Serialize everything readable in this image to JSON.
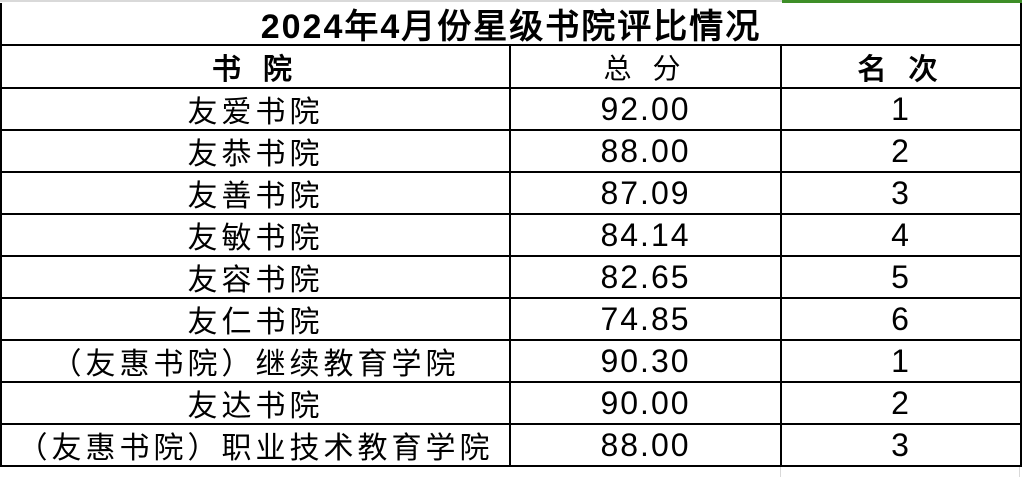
{
  "title": "2024年4月份星级书院评比情况",
  "headers": {
    "academy": "书 院",
    "score": "总 分",
    "rank": "名 次"
  },
  "rows": [
    {
      "academy": "友爱书院",
      "score": "92.00",
      "rank": "1"
    },
    {
      "academy": "友恭书院",
      "score": "88.00",
      "rank": "2"
    },
    {
      "academy": "友善书院",
      "score": "87.09",
      "rank": "3"
    },
    {
      "academy": "友敏书院",
      "score": "84.14",
      "rank": "4"
    },
    {
      "academy": "友容书院",
      "score": "82.65",
      "rank": "5"
    },
    {
      "academy": "友仁书院",
      "score": "74.85",
      "rank": "6"
    },
    {
      "academy": "（友惠书院）继续教育学院",
      "score": "90.30",
      "rank": "1"
    },
    {
      "academy": "友达书院",
      "score": "90.00",
      "rank": "2"
    },
    {
      "academy": "（友惠书院）职业技术教育学院",
      "score": "88.00",
      "rank": "3"
    }
  ],
  "colors": {
    "border": "#000000",
    "text": "#000000",
    "background": "#ffffff",
    "top_gridline_gray": "#d9d9d9",
    "top_gridline_green": "#3e8e28"
  }
}
